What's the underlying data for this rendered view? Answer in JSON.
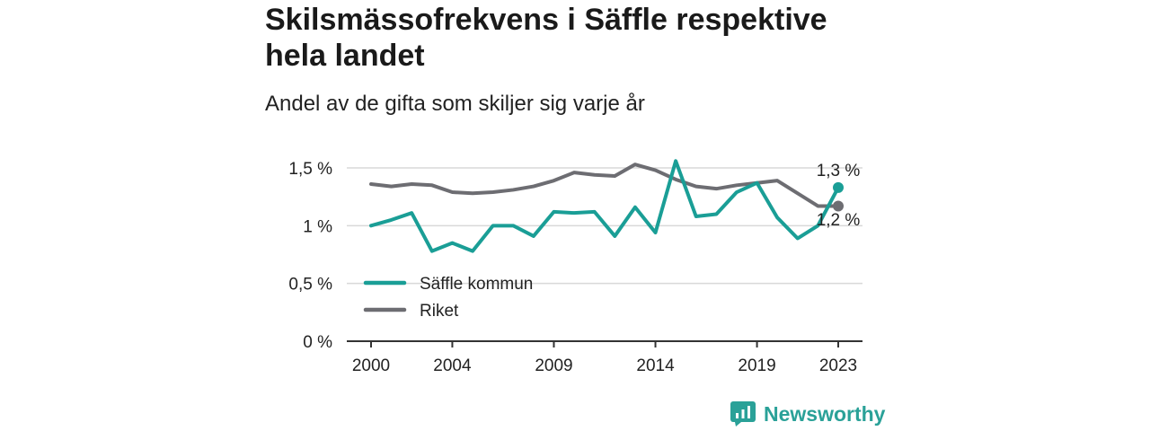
{
  "header": {
    "title": "Skilsmässofrekvens i Säffle respektive hela landet",
    "subtitle": "Andel av de gifta som skiljer sig varje år"
  },
  "brand": {
    "name": "Newsworthy",
    "icon": "newsworthy-logo-icon",
    "color": "#2aa198"
  },
  "chart_data": {
    "type": "line",
    "title": "Skilsmässofrekvens i Säffle respektive hela landet",
    "subtitle": "Andel av de gifta som skiljer sig varje år",
    "xlabel": "",
    "ylabel": "",
    "x": [
      2000,
      2001,
      2002,
      2003,
      2004,
      2005,
      2006,
      2007,
      2008,
      2009,
      2010,
      2011,
      2012,
      2013,
      2014,
      2015,
      2016,
      2017,
      2018,
      2019,
      2020,
      2021,
      2022,
      2023
    ],
    "x_ticks": [
      "2000",
      "2004",
      "2009",
      "2014",
      "2019",
      "2023"
    ],
    "y_ticks": [
      {
        "value": 0,
        "label": "0 %"
      },
      {
        "value": 0.5,
        "label": "0,5 %"
      },
      {
        "value": 1,
        "label": "1 %"
      },
      {
        "value": 1.5,
        "label": "1,5 %"
      }
    ],
    "ylim": [
      0,
      1.6
    ],
    "grid": "horizontal",
    "legend": "bottom-left",
    "series": [
      {
        "name": "Säffle kommun",
        "color": "#1a9e96",
        "values": [
          1.0,
          1.05,
          1.11,
          0.78,
          0.85,
          0.78,
          1.0,
          1.0,
          0.91,
          1.12,
          1.11,
          1.12,
          0.91,
          1.16,
          0.94,
          1.56,
          1.08,
          1.1,
          1.29,
          1.37,
          1.07,
          0.89,
          1.0,
          1.33
        ],
        "end_label": "1,3 %"
      },
      {
        "name": "Riket",
        "color": "#6d6d72",
        "values": [
          1.36,
          1.34,
          1.36,
          1.35,
          1.29,
          1.28,
          1.29,
          1.31,
          1.34,
          1.39,
          1.46,
          1.44,
          1.43,
          1.53,
          1.48,
          1.4,
          1.34,
          1.32,
          1.35,
          1.37,
          1.39,
          1.28,
          1.17,
          1.17
        ],
        "end_label": "1,2 %"
      }
    ]
  }
}
